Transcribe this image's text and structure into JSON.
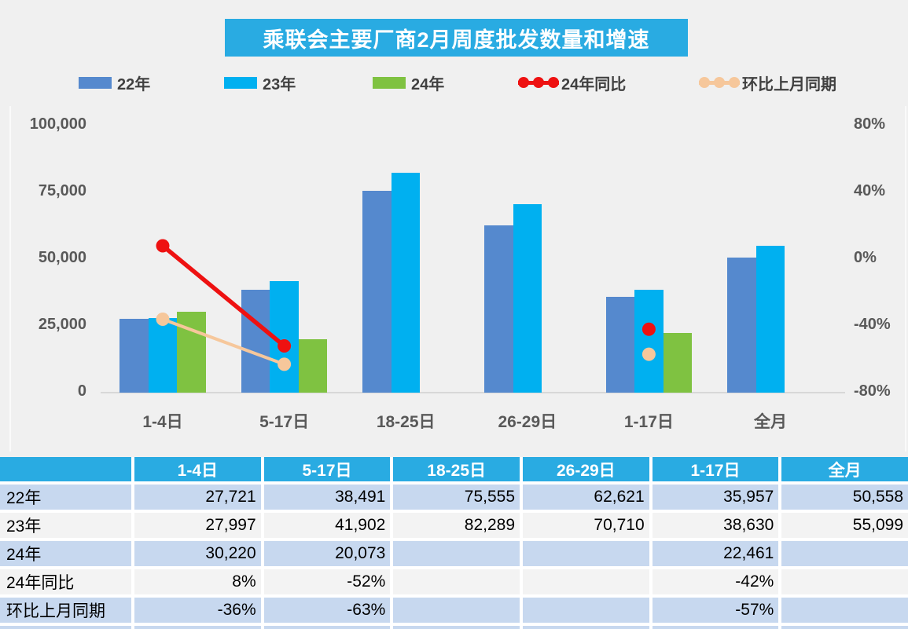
{
  "title": "乘联会主要厂商2月周度批发数量和增速",
  "colors": {
    "banner": "#29ABE2",
    "table_header": "#29ABE2",
    "row_shaded": "#C7D8EF",
    "row_plain": "#F3F3F3",
    "bar_22": "#5589CE",
    "bar_23": "#00B0F0",
    "bar_24": "#7FC241",
    "line_yoy": "#EE1111",
    "line_mom": "#F6C79B",
    "axis_text": "#595959"
  },
  "legend": [
    {
      "label": "22年",
      "type": "swatch",
      "color": "#5589CE"
    },
    {
      "label": "23年",
      "type": "swatch",
      "color": "#00B0F0"
    },
    {
      "label": "24年",
      "type": "swatch",
      "color": "#7FC241"
    },
    {
      "label": "24年同比",
      "type": "line",
      "color": "#EE1111"
    },
    {
      "label": "环比上月同期",
      "type": "line",
      "color": "#F6C79B"
    }
  ],
  "chart_data": {
    "type": "bar",
    "title": "乘联会主要厂商2月周度批发数量和增速",
    "categories": [
      "1-4日",
      "5-17日",
      "18-25日",
      "26-29日",
      "1-17日",
      "全月"
    ],
    "series": [
      {
        "name": "22年",
        "kind": "bar",
        "color": "#5589CE",
        "values": [
          27721,
          38491,
          75555,
          62621,
          35957,
          50558
        ]
      },
      {
        "name": "23年",
        "kind": "bar",
        "color": "#00B0F0",
        "values": [
          27997,
          41902,
          82289,
          70710,
          38630,
          55099
        ]
      },
      {
        "name": "24年",
        "kind": "bar",
        "color": "#7FC241",
        "values": [
          30220,
          20073,
          null,
          null,
          22461,
          null
        ]
      },
      {
        "name": "24年同比",
        "kind": "line",
        "color": "#EE1111",
        "values_pct": [
          8,
          -52,
          null,
          null,
          -42,
          null
        ]
      },
      {
        "name": "环比上月同期",
        "kind": "line",
        "color": "#F6C79B",
        "values_pct": [
          -36,
          -63,
          null,
          null,
          -57,
          null
        ]
      }
    ],
    "left_axis": {
      "label_ticks": [
        "100,000",
        "75,000",
        "50,000",
        "25,000",
        "0"
      ],
      "min": 0,
      "max": 100000
    },
    "right_axis": {
      "label_ticks": [
        "80%",
        "40%",
        "0%",
        "-40%",
        "-80%"
      ],
      "min": -80,
      "max": 80
    },
    "grid": "off",
    "legend_position": "top"
  },
  "table": {
    "headers": [
      "",
      "1-4日",
      "5-17日",
      "18-25日",
      "26-29日",
      "1-17日",
      "全月"
    ],
    "rows": [
      {
        "label": "22年",
        "values": [
          "27,721",
          "38,491",
          "75,555",
          "62,621",
          "35,957",
          "50,558"
        ]
      },
      {
        "label": "23年",
        "values": [
          "27,997",
          "41,902",
          "82,289",
          "70,710",
          "38,630",
          "55,099"
        ]
      },
      {
        "label": "24年",
        "values": [
          "30,220",
          "20,073",
          "",
          "",
          "22,461",
          ""
        ]
      },
      {
        "label": "24年同比",
        "values": [
          "8%",
          "-52%",
          "",
          "",
          "-42%",
          ""
        ]
      },
      {
        "label": "环比上月同期",
        "values": [
          "-36%",
          "-63%",
          "",
          "",
          "-57%",
          ""
        ]
      }
    ]
  }
}
